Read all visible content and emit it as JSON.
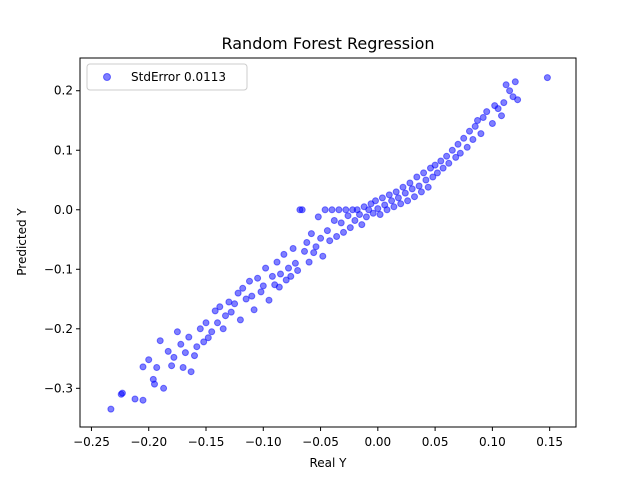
{
  "chart_data": {
    "type": "scatter",
    "title": "Random Forest Regression",
    "xlabel": "Real Y",
    "ylabel": "Predicted Y",
    "xlim": [
      -0.26,
      0.173
    ],
    "ylim": [
      -0.365,
      0.255
    ],
    "xticks": [
      -0.25,
      -0.2,
      -0.15,
      -0.1,
      -0.05,
      0.0,
      0.05,
      0.1,
      0.15
    ],
    "xtick_labels": [
      "−0.25",
      "−0.20",
      "−0.15",
      "−0.10",
      "−0.05",
      "0.00",
      "0.05",
      "0.10",
      "0.15"
    ],
    "yticks": [
      -0.3,
      -0.2,
      -0.1,
      0.0,
      0.1,
      0.2
    ],
    "ytick_labels": [
      "−0.3",
      "−0.2",
      "−0.1",
      "0.0",
      "0.1",
      "0.2"
    ],
    "grid": false,
    "legend": {
      "position": "top-left"
    },
    "series": [
      {
        "name": "StdError 0.0113",
        "color": "#0000ff",
        "alpha": 0.5,
        "points": [
          [
            -0.233,
            -0.335
          ],
          [
            -0.224,
            -0.31
          ],
          [
            -0.223,
            -0.308
          ],
          [
            -0.212,
            -0.318
          ],
          [
            -0.205,
            -0.32
          ],
          [
            -0.205,
            -0.264
          ],
          [
            -0.2,
            -0.252
          ],
          [
            -0.196,
            -0.285
          ],
          [
            -0.195,
            -0.293
          ],
          [
            -0.193,
            -0.265
          ],
          [
            -0.19,
            -0.22
          ],
          [
            -0.187,
            -0.3
          ],
          [
            -0.183,
            -0.238
          ],
          [
            -0.18,
            -0.262
          ],
          [
            -0.178,
            -0.248
          ],
          [
            -0.175,
            -0.205
          ],
          [
            -0.172,
            -0.226
          ],
          [
            -0.17,
            -0.265
          ],
          [
            -0.168,
            -0.24
          ],
          [
            -0.165,
            -0.214
          ],
          [
            -0.163,
            -0.272
          ],
          [
            -0.16,
            -0.245
          ],
          [
            -0.158,
            -0.23
          ],
          [
            -0.155,
            -0.2
          ],
          [
            -0.152,
            -0.222
          ],
          [
            -0.15,
            -0.19
          ],
          [
            -0.148,
            -0.215
          ],
          [
            -0.145,
            -0.205
          ],
          [
            -0.142,
            -0.17
          ],
          [
            -0.14,
            -0.19
          ],
          [
            -0.138,
            -0.163
          ],
          [
            -0.135,
            -0.2
          ],
          [
            -0.133,
            -0.178
          ],
          [
            -0.13,
            -0.155
          ],
          [
            -0.128,
            -0.172
          ],
          [
            -0.125,
            -0.158
          ],
          [
            -0.122,
            -0.14
          ],
          [
            -0.12,
            -0.185
          ],
          [
            -0.118,
            -0.132
          ],
          [
            -0.115,
            -0.15
          ],
          [
            -0.112,
            -0.12
          ],
          [
            -0.11,
            -0.145
          ],
          [
            -0.108,
            -0.168
          ],
          [
            -0.105,
            -0.115
          ],
          [
            -0.102,
            -0.138
          ],
          [
            -0.1,
            -0.128
          ],
          [
            -0.098,
            -0.098
          ],
          [
            -0.095,
            -0.152
          ],
          [
            -0.092,
            -0.112
          ],
          [
            -0.09,
            -0.126
          ],
          [
            -0.088,
            -0.088
          ],
          [
            -0.086,
            -0.13
          ],
          [
            -0.085,
            -0.108
          ],
          [
            -0.082,
            -0.075
          ],
          [
            -0.08,
            -0.118
          ],
          [
            -0.078,
            -0.098
          ],
          [
            -0.076,
            -0.112
          ],
          [
            -0.074,
            -0.065
          ],
          [
            -0.072,
            -0.09
          ],
          [
            -0.07,
            -0.102
          ],
          [
            -0.068,
            0.0
          ],
          [
            -0.066,
            0.0
          ],
          [
            -0.064,
            -0.07
          ],
          [
            -0.062,
            -0.055
          ],
          [
            -0.06,
            -0.088
          ],
          [
            -0.058,
            -0.04
          ],
          [
            -0.056,
            -0.072
          ],
          [
            -0.054,
            -0.062
          ],
          [
            -0.052,
            -0.012
          ],
          [
            -0.05,
            -0.048
          ],
          [
            -0.048,
            -0.078
          ],
          [
            -0.046,
            0.0
          ],
          [
            -0.044,
            -0.035
          ],
          [
            -0.042,
            -0.052
          ],
          [
            -0.04,
            0.0
          ],
          [
            -0.038,
            -0.018
          ],
          [
            -0.036,
            -0.045
          ],
          [
            -0.034,
            0.0
          ],
          [
            -0.032,
            -0.022
          ],
          [
            -0.03,
            -0.038
          ],
          [
            -0.028,
            0.0
          ],
          [
            -0.026,
            -0.01
          ],
          [
            -0.024,
            -0.03
          ],
          [
            -0.022,
            0.0
          ],
          [
            -0.02,
            -0.018
          ],
          [
            -0.018,
            0.0
          ],
          [
            -0.016,
            -0.008
          ],
          [
            -0.014,
            -0.025
          ],
          [
            -0.012,
            0.005
          ],
          [
            -0.01,
            -0.012
          ],
          [
            -0.008,
            0.0
          ],
          [
            -0.006,
            0.01
          ],
          [
            -0.004,
            -0.006
          ],
          [
            -0.002,
            0.015
          ],
          [
            0.0,
            0.002
          ],
          [
            0.002,
            -0.008
          ],
          [
            0.004,
            0.02
          ],
          [
            0.006,
            0.008
          ],
          [
            0.008,
            0.0
          ],
          [
            0.01,
            0.025
          ],
          [
            0.012,
            0.015
          ],
          [
            0.014,
            0.005
          ],
          [
            0.016,
            0.03
          ],
          [
            0.018,
            0.02
          ],
          [
            0.02,
            0.01
          ],
          [
            0.022,
            0.038
          ],
          [
            0.024,
            0.028
          ],
          [
            0.026,
            0.015
          ],
          [
            0.028,
            0.045
          ],
          [
            0.03,
            0.035
          ],
          [
            0.032,
            0.022
          ],
          [
            0.034,
            0.055
          ],
          [
            0.036,
            0.04
          ],
          [
            0.038,
            0.03
          ],
          [
            0.04,
            0.062
          ],
          [
            0.042,
            0.05
          ],
          [
            0.044,
            0.038
          ],
          [
            0.046,
            0.07
          ],
          [
            0.048,
            0.055
          ],
          [
            0.05,
            0.075
          ],
          [
            0.052,
            0.062
          ],
          [
            0.055,
            0.082
          ],
          [
            0.057,
            0.07
          ],
          [
            0.06,
            0.09
          ],
          [
            0.062,
            0.078
          ],
          [
            0.065,
            0.1
          ],
          [
            0.068,
            0.088
          ],
          [
            0.07,
            0.11
          ],
          [
            0.072,
            0.095
          ],
          [
            0.075,
            0.12
          ],
          [
            0.078,
            0.105
          ],
          [
            0.08,
            0.132
          ],
          [
            0.083,
            0.118
          ],
          [
            0.085,
            0.14
          ],
          [
            0.087,
            0.15
          ],
          [
            0.09,
            0.128
          ],
          [
            0.092,
            0.155
          ],
          [
            0.095,
            0.165
          ],
          [
            0.1,
            0.145
          ],
          [
            0.102,
            0.175
          ],
          [
            0.105,
            0.17
          ],
          [
            0.108,
            0.158
          ],
          [
            0.11,
            0.18
          ],
          [
            0.112,
            0.21
          ],
          [
            0.115,
            0.2
          ],
          [
            0.118,
            0.19
          ],
          [
            0.12,
            0.215
          ],
          [
            0.122,
            0.185
          ],
          [
            0.148,
            0.222
          ]
        ]
      }
    ]
  }
}
